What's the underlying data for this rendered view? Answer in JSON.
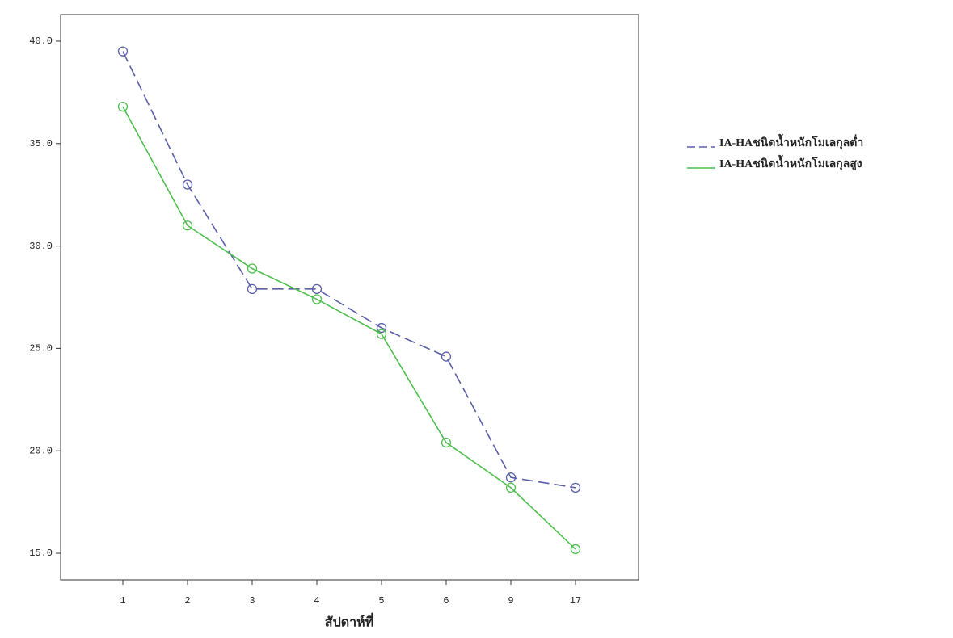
{
  "chart_data": {
    "type": "line",
    "x_label": "สัปดาห์ที่",
    "categories": [
      "1",
      "2",
      "3",
      "4",
      "5",
      "6",
      "9",
      "17"
    ],
    "series": [
      {
        "name": "IA-HAชนิดน้ำหนักโมเลกุลต่ำ",
        "color": "#5b5fa8",
        "dash": true,
        "values": [
          39.5,
          33.0,
          27.9,
          27.9,
          26.0,
          24.6,
          18.7,
          18.2
        ]
      },
      {
        "name": "IA-HAชนิดน้ำหนักโมเลกุลสูง",
        "color": "#4fbe4f",
        "dash": false,
        "values": [
          36.8,
          31.0,
          28.9,
          27.4,
          25.7,
          20.4,
          18.2,
          15.2
        ]
      }
    ],
    "ylim": [
      13.7,
      41.3
    ],
    "yticks": [
      {
        "value": 15,
        "label": "15.0"
      },
      {
        "value": 20,
        "label": "20.0"
      },
      {
        "value": 25,
        "label": "25.0"
      },
      {
        "value": 30,
        "label": "30.0"
      },
      {
        "value": 35,
        "label": "35.0"
      },
      {
        "value": 40,
        "label": "40.0"
      }
    ],
    "legend": "right"
  }
}
